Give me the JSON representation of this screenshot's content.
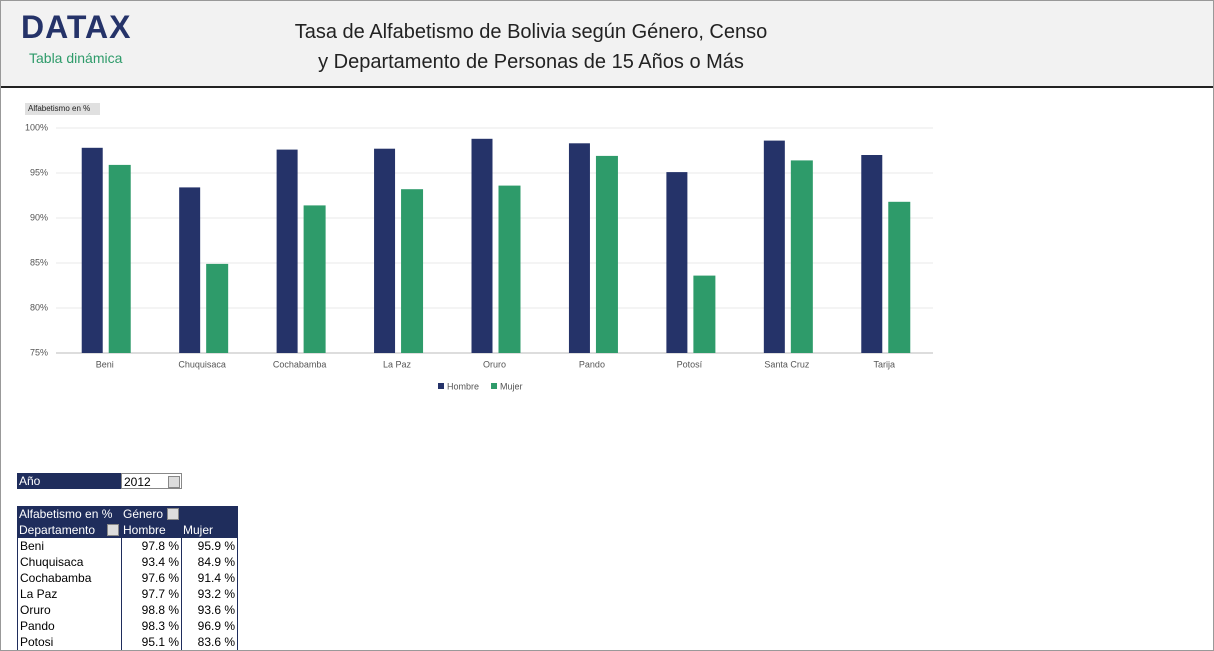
{
  "header": {
    "logo": "DATAX",
    "subtitle": "Tabla dinámica",
    "title_lines": [
      "Tasa de Alfabetismo de Bolivia según Género, Censo",
      "y Departamento de Personas de 15 Años o Más"
    ]
  },
  "chart_data": {
    "type": "bar",
    "ylabel": "Alfabetismo en %",
    "categories": [
      "Beni",
      "Chuquisaca",
      "Cochabamba",
      "La Paz",
      "Oruro",
      "Pando",
      "Potosí",
      "Santa Cruz",
      "Tarija"
    ],
    "series": [
      {
        "name": "Hombre",
        "color": "#253369",
        "values": [
          97.8,
          93.4,
          97.6,
          97.7,
          98.8,
          98.3,
          95.1,
          98.6,
          97.0
        ]
      },
      {
        "name": "Mujer",
        "color": "#2e9b6a",
        "values": [
          95.9,
          84.9,
          91.4,
          93.2,
          93.6,
          96.9,
          83.6,
          96.4,
          91.8
        ]
      }
    ],
    "ylim": [
      75,
      100
    ],
    "yticks": [
      {
        "value": 75,
        "label": "75%"
      },
      {
        "value": 80,
        "label": "80%"
      },
      {
        "value": 85,
        "label": "85%"
      },
      {
        "value": 90,
        "label": "90%"
      },
      {
        "value": 95,
        "label": "95%"
      },
      {
        "value": 100,
        "label": "100%"
      }
    ],
    "grid": true,
    "legend": "bottom"
  },
  "filter": {
    "label": "Año",
    "value": "2012"
  },
  "pivot": {
    "corner": "Alfabetismo en %",
    "column_field": "Género",
    "row_field": "Departamento",
    "columns": [
      "Hombre",
      "Mujer"
    ],
    "rows": [
      [
        "Beni",
        "97.8 %",
        "95.9 %"
      ],
      [
        "Chuquisaca",
        "93.4 %",
        "84.9 %"
      ],
      [
        "Cochabamba",
        "97.6 %",
        "91.4 %"
      ],
      [
        "La Paz",
        "97.7 %",
        "93.2 %"
      ],
      [
        "Oruro",
        "98.8 %",
        "93.6 %"
      ],
      [
        "Pando",
        "98.3 %",
        "96.9 %"
      ],
      [
        "Potosi",
        "95.1 %",
        "83.6 %"
      ]
    ]
  }
}
